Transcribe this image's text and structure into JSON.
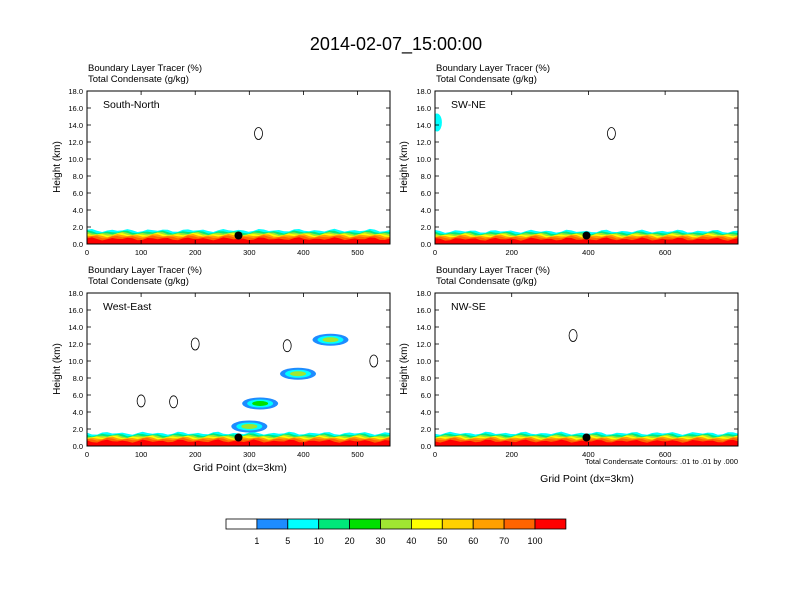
{
  "title": "2014-02-07_15:00:00",
  "panel_header": {
    "line1": "Boundary Layer Tracer   (%)",
    "line2": "Total Condensate   (g/kg)"
  },
  "ylabel": "Height (km)",
  "xlabel": "Grid Point (dx=3km)",
  "contour_note": "Total Condensate Contours: .01 to .01 by .000",
  "colorbar": {
    "levels": [
      "1",
      "5",
      "10",
      "20",
      "30",
      "40",
      "50",
      "60",
      "70",
      "100"
    ],
    "colors": [
      "#ffffff",
      "#1e8cff",
      "#00ffff",
      "#00e87a",
      "#00e000",
      "#a0e632",
      "#ffff00",
      "#ffd200",
      "#ffa000",
      "#ff6400",
      "#ff0000"
    ]
  },
  "chart_data": [
    {
      "type": "heatmap",
      "panel": "South-North",
      "label": "South-North",
      "xlim": [
        0,
        560
      ],
      "ylim": [
        0,
        18
      ],
      "xticks": [
        "0",
        "100",
        "200",
        "300",
        "400",
        "500"
      ],
      "yticks": [
        "0.0",
        "2.0",
        "4.0",
        "6.0",
        "8.0",
        "10.0",
        "12.0",
        "14.0",
        "16.0",
        "18.0"
      ],
      "marker": {
        "x": 280,
        "y": 1.0
      },
      "boundary_layer_top_km": 1.6,
      "condensate_contours": [
        {
          "x": 317,
          "y": 13.0
        }
      ]
    },
    {
      "type": "heatmap",
      "panel": "SW-NE",
      "label": "SW-NE",
      "xlim": [
        0,
        790
      ],
      "ylim": [
        0,
        18
      ],
      "xticks": [
        "0",
        "200",
        "400",
        "600"
      ],
      "yticks": [
        "0.0",
        "2.0",
        "4.0",
        "6.0",
        "8.0",
        "10.0",
        "12.0",
        "14.0",
        "16.0",
        "18.0"
      ],
      "marker": {
        "x": 395,
        "y": 1.0
      },
      "boundary_layer_top_km": 1.5,
      "tracer_patches": [
        {
          "x": 5,
          "y": 14.3,
          "level": "5"
        }
      ],
      "condensate_contours": [
        {
          "x": 460,
          "y": 13.0
        }
      ]
    },
    {
      "type": "heatmap",
      "panel": "West-East",
      "label": "West-East",
      "xlim": [
        0,
        560
      ],
      "ylim": [
        0,
        18
      ],
      "xticks": [
        "0",
        "100",
        "200",
        "300",
        "400",
        "500"
      ],
      "yticks": [
        "0.0",
        "2.0",
        "4.0",
        "6.0",
        "8.0",
        "10.0",
        "12.0",
        "14.0",
        "16.0",
        "18.0"
      ],
      "marker": {
        "x": 280,
        "y": 1.0
      },
      "boundary_layer_top_km": 1.5,
      "tracer_patches": [
        {
          "x": 320,
          "y": 5.0,
          "level": "20"
        },
        {
          "x": 390,
          "y": 8.5,
          "level": "30"
        },
        {
          "x": 450,
          "y": 12.5,
          "level": "30"
        },
        {
          "x": 300,
          "y": 2.3,
          "level": "30"
        }
      ],
      "condensate_contours": [
        {
          "x": 100,
          "y": 5.3
        },
        {
          "x": 160,
          "y": 5.2
        },
        {
          "x": 200,
          "y": 12.0
        },
        {
          "x": 370,
          "y": 11.8
        },
        {
          "x": 530,
          "y": 10.0
        }
      ]
    },
    {
      "type": "heatmap",
      "panel": "NW-SE",
      "label": "NW-SE",
      "xlim": [
        0,
        790
      ],
      "ylim": [
        0,
        18
      ],
      "xticks": [
        "0",
        "200",
        "400",
        "600"
      ],
      "yticks": [
        "0.0",
        "2.0",
        "4.0",
        "6.0",
        "8.0",
        "10.0",
        "12.0",
        "14.0",
        "16.0",
        "18.0"
      ],
      "marker": {
        "x": 395,
        "y": 1.0
      },
      "boundary_layer_top_km": 1.5,
      "condensate_contours": [
        {
          "x": 360,
          "y": 13.0
        }
      ]
    }
  ]
}
